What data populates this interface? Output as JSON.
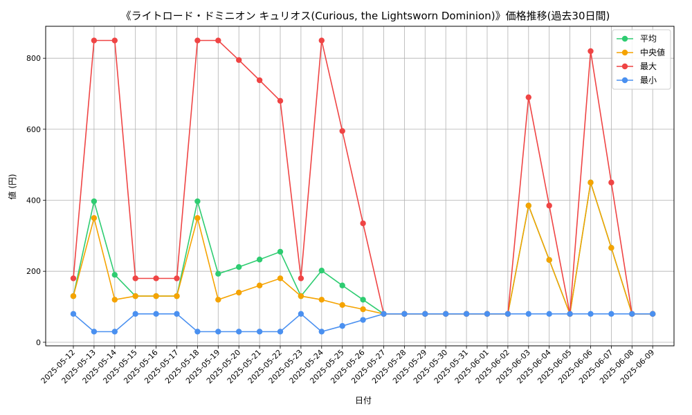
{
  "chart_data": {
    "type": "line",
    "title": "《ライトロード・ドミニオン キュリオス(Curious, the Lightsworn Dominion)》価格推移(過去30日間)",
    "xlabel": "日付",
    "ylabel": "値 (円)",
    "ylim": [
      -10,
      890
    ],
    "yticks": [
      0,
      200,
      400,
      600,
      800
    ],
    "grid": true,
    "legend_position": "top-right",
    "categories": [
      "2025-05-12",
      "2025-05-13",
      "2025-05-14",
      "2025-05-15",
      "2025-05-16",
      "2025-05-17",
      "2025-05-18",
      "2025-05-19",
      "2025-05-20",
      "2025-05-21",
      "2025-05-22",
      "2025-05-23",
      "2025-05-24",
      "2025-05-25",
      "2025-05-26",
      "2025-05-27",
      "2025-05-28",
      "2025-05-29",
      "2025-05-30",
      "2025-05-31",
      "2025-06-01",
      "2025-06-02",
      "2025-06-03",
      "2025-06-04",
      "2025-06-05",
      "2025-06-06",
      "2025-06-07",
      "2025-06-08",
      "2025-06-09"
    ],
    "series": [
      {
        "name": "平均",
        "color": "#2ecc71",
        "values": [
          130,
          397,
          190,
          130,
          130,
          130,
          397,
          193,
          212,
          233,
          255,
          130,
          202,
          160,
          120,
          80,
          80,
          80,
          80,
          80,
          80,
          80,
          385,
          232,
          80,
          450,
          266,
          80,
          80
        ]
      },
      {
        "name": "中央値",
        "color": "#f5a300",
        "values": [
          130,
          350,
          120,
          130,
          130,
          130,
          350,
          120,
          140,
          160,
          180,
          130,
          120,
          105,
          93,
          80,
          80,
          80,
          80,
          80,
          80,
          80,
          385,
          232,
          80,
          450,
          266,
          80,
          80
        ]
      },
      {
        "name": "最大",
        "color": "#ef4444",
        "values": [
          180,
          850,
          850,
          180,
          180,
          180,
          850,
          850,
          795,
          738,
          680,
          180,
          850,
          595,
          335,
          80,
          80,
          80,
          80,
          80,
          80,
          80,
          690,
          385,
          80,
          820,
          450,
          80,
          80
        ]
      },
      {
        "name": "最小",
        "color": "#4a90f0",
        "values": [
          80,
          30,
          30,
          80,
          80,
          80,
          30,
          30,
          30,
          30,
          30,
          80,
          30,
          46,
          63,
          80,
          80,
          80,
          80,
          80,
          80,
          80,
          80,
          80,
          80,
          80,
          80,
          80,
          80
        ]
      }
    ]
  }
}
